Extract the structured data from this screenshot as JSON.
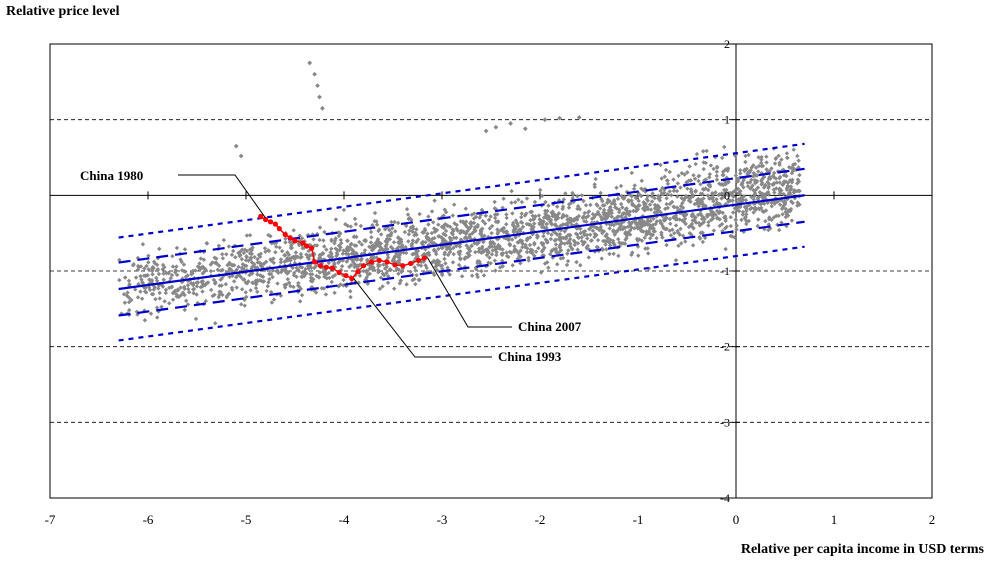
{
  "chart_data": {
    "type": "scatter",
    "ylabel": "Relative price level",
    "xlabel": "Relative per capita income in USD terms",
    "xlim": [
      -7,
      2
    ],
    "ylim": [
      -4,
      2
    ],
    "x_ticks": [
      -7,
      -6,
      -5,
      -4,
      -3,
      -2,
      -1,
      0,
      1,
      2
    ],
    "x_tick_labels": [
      "-7",
      "-6",
      "-5",
      "-4",
      "-3",
      "-2",
      "-1",
      "0",
      "1",
      "2"
    ],
    "y_ticks": [
      -4,
      -3,
      -2,
      -1,
      0,
      1,
      2
    ],
    "y_tick_labels": [
      "-4",
      "-3",
      "-2",
      "-1",
      "0",
      "1",
      "2"
    ],
    "y_gridlines_dashed": [
      -3,
      -2,
      -1,
      1
    ],
    "regression": {
      "x_range": [
        -6.3,
        0.7
      ],
      "slope": 0.177,
      "intercept": -0.123,
      "inner_band_offset": 0.35,
      "outer_band_offset": 0.68,
      "color": "#0000cc"
    },
    "china_series": {
      "color": "#ff0000",
      "points": [
        [
          -4.85,
          -0.28
        ],
        [
          -4.8,
          -0.32
        ],
        [
          -4.75,
          -0.35
        ],
        [
          -4.7,
          -0.38
        ],
        [
          -4.66,
          -0.44
        ],
        [
          -4.6,
          -0.52
        ],
        [
          -4.55,
          -0.56
        ],
        [
          -4.5,
          -0.6
        ],
        [
          -4.42,
          -0.63
        ],
        [
          -4.38,
          -0.67
        ],
        [
          -4.33,
          -0.7
        ],
        [
          -4.3,
          -0.88
        ],
        [
          -4.24,
          -0.93
        ],
        [
          -4.18,
          -0.95
        ],
        [
          -4.12,
          -0.96
        ],
        [
          -4.05,
          -1.02
        ],
        [
          -3.98,
          -1.06
        ],
        [
          -3.92,
          -1.1
        ],
        [
          -3.86,
          -1.01
        ],
        [
          -3.8,
          -0.93
        ],
        [
          -3.72,
          -0.88
        ],
        [
          -3.64,
          -0.86
        ],
        [
          -3.56,
          -0.88
        ],
        [
          -3.48,
          -0.92
        ],
        [
          -3.4,
          -0.93
        ],
        [
          -3.32,
          -0.9
        ],
        [
          -3.24,
          -0.86
        ],
        [
          -3.18,
          -0.83
        ]
      ]
    },
    "scatter_color": "#888888",
    "outliers": [
      [
        -4.35,
        1.75
      ],
      [
        -4.3,
        1.6
      ],
      [
        -4.27,
        1.45
      ],
      [
        -4.25,
        1.3
      ],
      [
        -4.22,
        1.15
      ],
      [
        -2.55,
        0.85
      ],
      [
        -2.45,
        0.9
      ],
      [
        -2.3,
        0.95
      ],
      [
        -2.15,
        0.88
      ],
      [
        -1.95,
        1.0
      ],
      [
        -1.8,
        1.02
      ],
      [
        -1.6,
        1.03
      ],
      [
        -5.1,
        0.65
      ],
      [
        -5.05,
        0.52
      ]
    ],
    "annotations": [
      {
        "text": "China 1980",
        "x": -4.8,
        "y": -0.3
      },
      {
        "text": "China 2007",
        "x": -3.15,
        "y": -0.82
      },
      {
        "text": "China 1993",
        "x": -3.9,
        "y": -1.1
      }
    ]
  }
}
